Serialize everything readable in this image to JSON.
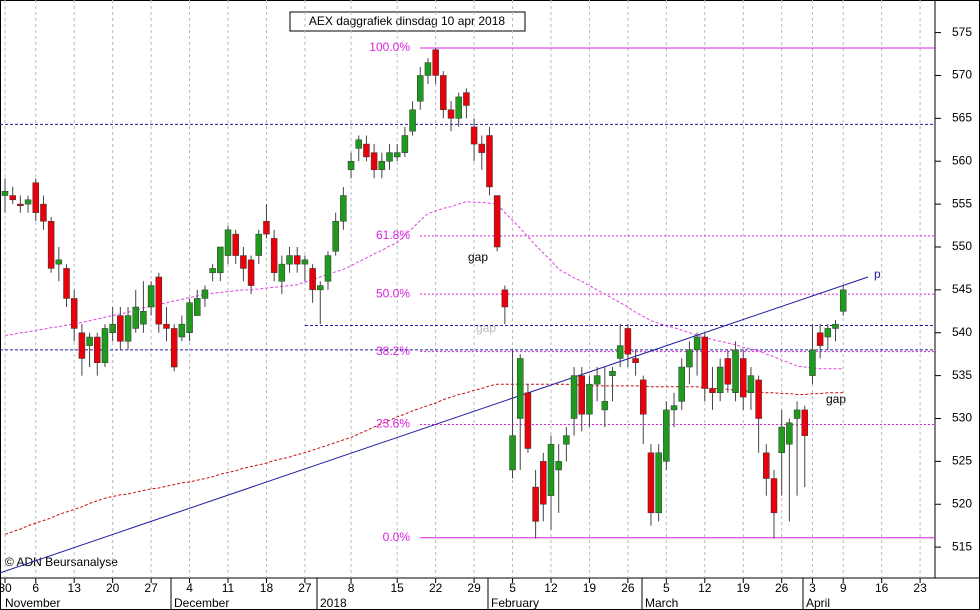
{
  "chart_data": {
    "type": "candlestick",
    "title": "AEX daggrafiek dinsdag 10 apr 2018",
    "watermark": "© ADN Beursanalyse",
    "ylim": [
      511.4,
      578.8
    ],
    "yticks": [
      515,
      520,
      525,
      530,
      535,
      540,
      545,
      550,
      555,
      560,
      565,
      570,
      575
    ],
    "month_labels": [
      "November",
      "December",
      "2018",
      "February",
      "March",
      "April"
    ],
    "annotations": [
      "gap",
      "gap",
      "gap"
    ],
    "categories": [
      "30",
      null,
      null,
      null,
      "6",
      null,
      null,
      null,
      null,
      "13",
      null,
      null,
      null,
      null,
      "20",
      null,
      null,
      null,
      null,
      "27",
      null,
      null,
      null,
      null,
      "4",
      null,
      null,
      null,
      null,
      "11",
      null,
      null,
      null,
      null,
      "18",
      null,
      null,
      null,
      null,
      "27",
      null,
      null,
      null,
      null,
      null,
      "8",
      null,
      null,
      null,
      null,
      null,
      "15",
      null,
      null,
      null,
      null,
      "22",
      null,
      null,
      null,
      null,
      "29",
      null,
      null,
      null,
      null,
      "5",
      null,
      null,
      null,
      null,
      "12",
      null,
      null,
      null,
      null,
      "19",
      null,
      null,
      null,
      null,
      "26",
      null,
      null,
      null,
      null,
      "5",
      null,
      null,
      null,
      null,
      "12",
      null,
      null,
      null,
      null,
      "19",
      null,
      null,
      null,
      null,
      "26",
      null,
      null,
      null,
      "3",
      null,
      null,
      null,
      "9",
      null,
      null,
      null,
      null,
      "16",
      null,
      null,
      null,
      null,
      "23"
    ],
    "up_color": "#1f9a1f",
    "down_color": "#e8000b",
    "ohlc": [
      [
        556,
        558,
        554,
        556.5
      ],
      [
        556,
        557,
        555,
        555.5
      ],
      [
        555,
        556,
        554,
        554.8
      ],
      [
        555,
        556,
        554,
        555.5
      ],
      [
        557.5,
        558,
        553,
        554
      ],
      [
        555,
        556,
        552,
        553
      ],
      [
        553,
        553.5,
        547,
        547.5
      ],
      [
        548,
        550,
        546,
        548.5
      ],
      [
        547.5,
        548,
        543,
        544
      ],
      [
        544,
        545,
        539,
        540.5
      ],
      [
        540,
        541,
        535,
        537
      ],
      [
        538.5,
        540,
        536,
        539.5
      ],
      [
        539.5,
        540,
        535,
        536.5
      ],
      [
        536.5,
        541,
        536,
        540.5
      ],
      [
        540,
        543,
        539,
        541
      ],
      [
        542,
        543,
        538,
        539
      ],
      [
        539,
        543,
        538,
        542
      ],
      [
        540.5,
        545,
        540,
        543
      ],
      [
        541,
        546,
        540,
        542.5
      ],
      [
        543,
        546,
        542,
        545.5
      ],
      [
        546.5,
        547,
        540,
        541
      ],
      [
        541,
        543,
        539,
        540.5
      ],
      [
        540.5,
        541,
        535.5,
        536
      ],
      [
        539.5,
        542,
        539,
        541
      ],
      [
        540,
        544,
        539,
        543.5
      ],
      [
        542,
        545,
        542,
        544
      ],
      [
        544,
        545.5,
        543,
        545
      ],
      [
        547,
        548,
        546,
        547.5
      ],
      [
        547,
        550,
        546,
        550
      ],
      [
        549,
        552.5,
        548,
        552
      ],
      [
        551.5,
        552,
        548,
        549
      ],
      [
        549,
        550,
        546,
        547.5
      ],
      [
        548.5,
        549,
        544.5,
        545.5
      ],
      [
        549,
        552,
        548,
        551.5
      ],
      [
        553,
        555,
        551,
        551.5
      ],
      [
        551,
        552,
        546,
        547
      ],
      [
        546,
        549,
        544.5,
        548
      ],
      [
        548,
        550,
        547,
        549
      ],
      [
        549,
        550,
        547,
        548
      ],
      [
        548,
        549,
        546,
        548.5
      ],
      [
        547.5,
        548,
        543.5,
        545
      ],
      [
        545,
        546,
        541,
        545.5
      ],
      [
        546,
        549.5,
        545,
        549
      ],
      [
        549.5,
        554,
        549,
        553
      ],
      [
        553,
        557,
        552,
        556
      ],
      [
        559,
        561,
        558,
        560
      ],
      [
        561.5,
        563,
        560,
        562.5
      ],
      [
        562,
        563,
        560,
        560.5
      ],
      [
        561,
        562,
        558,
        559
      ],
      [
        559,
        561,
        558,
        560
      ],
      [
        560,
        562,
        559,
        561
      ],
      [
        560.5,
        562,
        560,
        561
      ],
      [
        561,
        564,
        560.5,
        563
      ],
      [
        563.5,
        567,
        563,
        566
      ],
      [
        567,
        571,
        566,
        570
      ],
      [
        570,
        572,
        569,
        571.5
      ],
      [
        573,
        573.2,
        569,
        570
      ],
      [
        570,
        570.5,
        565,
        566
      ],
      [
        566,
        567,
        563.5,
        565
      ],
      [
        565,
        568,
        564,
        567.5
      ],
      [
        568,
        568.5,
        565,
        566.5
      ],
      [
        564,
        565,
        560,
        562
      ],
      [
        562,
        563,
        559,
        561
      ],
      [
        563,
        564,
        556,
        557
      ],
      [
        556,
        556,
        549.5,
        550
      ],
      [
        545,
        545.5,
        541,
        543
      ],
      [
        524,
        538,
        523,
        528
      ],
      [
        530,
        537.5,
        524,
        537
      ],
      [
        533,
        534,
        526,
        526.5
      ],
      [
        522,
        524,
        516,
        518
      ],
      [
        525,
        526,
        518,
        520
      ],
      [
        521,
        528,
        517,
        527
      ],
      [
        524,
        527,
        519,
        525
      ],
      [
        527,
        529,
        525,
        528
      ],
      [
        530,
        536,
        528,
        535
      ],
      [
        535,
        536,
        528.5,
        530.5
      ],
      [
        530.5,
        535,
        529,
        534
      ],
      [
        534,
        536,
        532,
        535
      ],
      [
        531,
        536,
        529,
        532
      ],
      [
        535,
        536,
        532,
        535.5
      ],
      [
        537,
        541,
        536,
        538.5
      ],
      [
        540.5,
        541,
        536,
        537.5
      ],
      [
        537,
        538,
        535,
        536.5
      ],
      [
        534.5,
        535,
        527,
        530.5
      ],
      [
        526,
        527,
        517.5,
        519
      ],
      [
        519,
        527,
        518,
        526
      ],
      [
        525,
        532,
        524,
        531
      ],
      [
        531,
        533,
        529,
        531.5
      ],
      [
        532,
        537,
        531,
        536
      ],
      [
        536,
        539,
        534,
        538
      ],
      [
        538,
        540,
        535,
        539.5
      ],
      [
        539.5,
        540,
        532,
        533.5
      ],
      [
        533.5,
        536,
        531,
        533
      ],
      [
        533,
        537,
        532,
        536
      ],
      [
        537,
        538,
        533,
        534
      ],
      [
        533,
        539,
        532,
        538
      ],
      [
        537,
        538,
        531,
        532.5
      ],
      [
        533,
        536,
        531,
        535
      ],
      [
        534.5,
        535,
        526,
        530
      ],
      [
        526,
        527,
        521,
        523
      ],
      [
        523,
        524,
        516,
        519
      ],
      [
        526,
        531,
        521,
        529
      ],
      [
        527,
        530,
        518,
        529.5
      ],
      [
        530,
        532,
        521,
        531
      ],
      [
        531,
        531.5,
        522,
        528
      ],
      [
        535,
        541,
        534,
        538
      ],
      [
        540,
        541,
        537,
        538.5
      ],
      [
        539.5,
        541,
        538,
        540.5
      ],
      [
        540.5,
        541.5,
        539,
        541
      ],
      [
        542.5,
        545.5,
        542,
        545
      ],
      null,
      null,
      null,
      null,
      null,
      null,
      null,
      null,
      null,
      null
    ],
    "series": [
      {
        "color": "#e040e0",
        "values": [
          539.7,
          539.8,
          540.0,
          540.1,
          540.3,
          540.4,
          540.6,
          540.7,
          540.9,
          541.0,
          541.2,
          541.4,
          541.6,
          541.8,
          542.0,
          542.2,
          542.4,
          542.6,
          542.9,
          543.1,
          543.3,
          543.5,
          543.7,
          543.9,
          544.1,
          544.3,
          544.5,
          544.6,
          544.7,
          544.8,
          544.9,
          545.0,
          545.0,
          545.1,
          545.2,
          545.3,
          545.4,
          545.5,
          545.6,
          545.9,
          546.2,
          546.5,
          546.8,
          547.1,
          547.4,
          547.8,
          548.3,
          548.7,
          549.2,
          549.6,
          550.1,
          550.5,
          551.4,
          552.2,
          553.1,
          553.9,
          554.2,
          554.5,
          554.7,
          555.0,
          555.3,
          555.2,
          555.2,
          555.1,
          555.0,
          554.0,
          553.1,
          552.2,
          551.2,
          550.2,
          549.3,
          548.4,
          547.4,
          546.9,
          546.4,
          546.0,
          545.5,
          545.0,
          544.5,
          544.0,
          543.5,
          543.0,
          542.4,
          541.9,
          541.4,
          541.1,
          540.8,
          540.6,
          540.3,
          540.0,
          539.7,
          539.5,
          539.2,
          539.0,
          538.8,
          538.6,
          538.3,
          538.1,
          537.9,
          537.5,
          537.2,
          536.8,
          536.5,
          536.1,
          536.0,
          535.9,
          535.8,
          535.8,
          535.8,
          535.8,
          null,
          null,
          null,
          null,
          null,
          null,
          null,
          null,
          null,
          null
        ]
      },
      {
        "color": "#cc1111",
        "values": [
          516.5,
          516.8,
          517.1,
          517.5,
          517.8,
          518.1,
          518.4,
          518.8,
          519.1,
          519.4,
          519.7,
          520.1,
          520.4,
          520.7,
          520.9,
          521.1,
          521.2,
          521.4,
          521.6,
          521.8,
          521.9,
          522.1,
          522.3,
          522.5,
          522.6,
          522.8,
          523.0,
          523.2,
          523.5,
          523.7,
          523.9,
          524.2,
          524.4,
          524.6,
          524.8,
          525.1,
          525.3,
          525.5,
          525.8,
          526.0,
          526.3,
          526.6,
          526.9,
          527.2,
          527.5,
          527.8,
          528.2,
          528.6,
          529.0,
          529.4,
          529.8,
          530.2,
          530.5,
          530.9,
          531.2,
          531.5,
          531.8,
          532.2,
          532.5,
          532.8,
          533.0,
          533.3,
          533.5,
          533.8,
          534.0,
          534.0,
          534.0,
          534.0,
          534.0,
          534.0,
          534.0,
          534.0,
          534.0,
          534.0,
          533.9,
          533.9,
          533.8,
          533.8,
          533.8,
          533.8,
          533.8,
          533.8,
          533.8,
          533.8,
          533.7,
          533.7,
          533.7,
          533.7,
          533.7,
          533.7,
          533.7,
          533.6,
          533.5,
          533.5,
          533.4,
          533.3,
          533.2,
          533.2,
          533.1,
          533.0,
          533.0,
          532.9,
          532.9,
          532.8,
          532.8,
          532.9,
          532.9,
          533.0,
          533.0,
          533.0,
          null,
          null,
          null,
          null,
          null,
          null,
          null,
          null,
          null,
          null
        ]
      }
    ],
    "hlines": {
      "color": "#1c1ca0",
      "values": [
        564.3,
        540.85,
        538.0
      ]
    },
    "fib_levels": {
      "color": "#dd22dd",
      "levels": [
        {
          "label": "100.0%",
          "value": 573.2
        },
        {
          "label": "61.8%",
          "value": 551.3
        },
        {
          "label": "50.0%",
          "value": 544.5
        },
        {
          "label": "38.2%",
          "value": 537.8
        },
        {
          "label": "23.6%",
          "value": 529.3
        },
        {
          "label": "0.0%",
          "value": 516.1
        }
      ]
    },
    "trendline": {
      "label": "p",
      "color": "#1c1ca0",
      "from": 512.0,
      "to": 546.5
    }
  }
}
